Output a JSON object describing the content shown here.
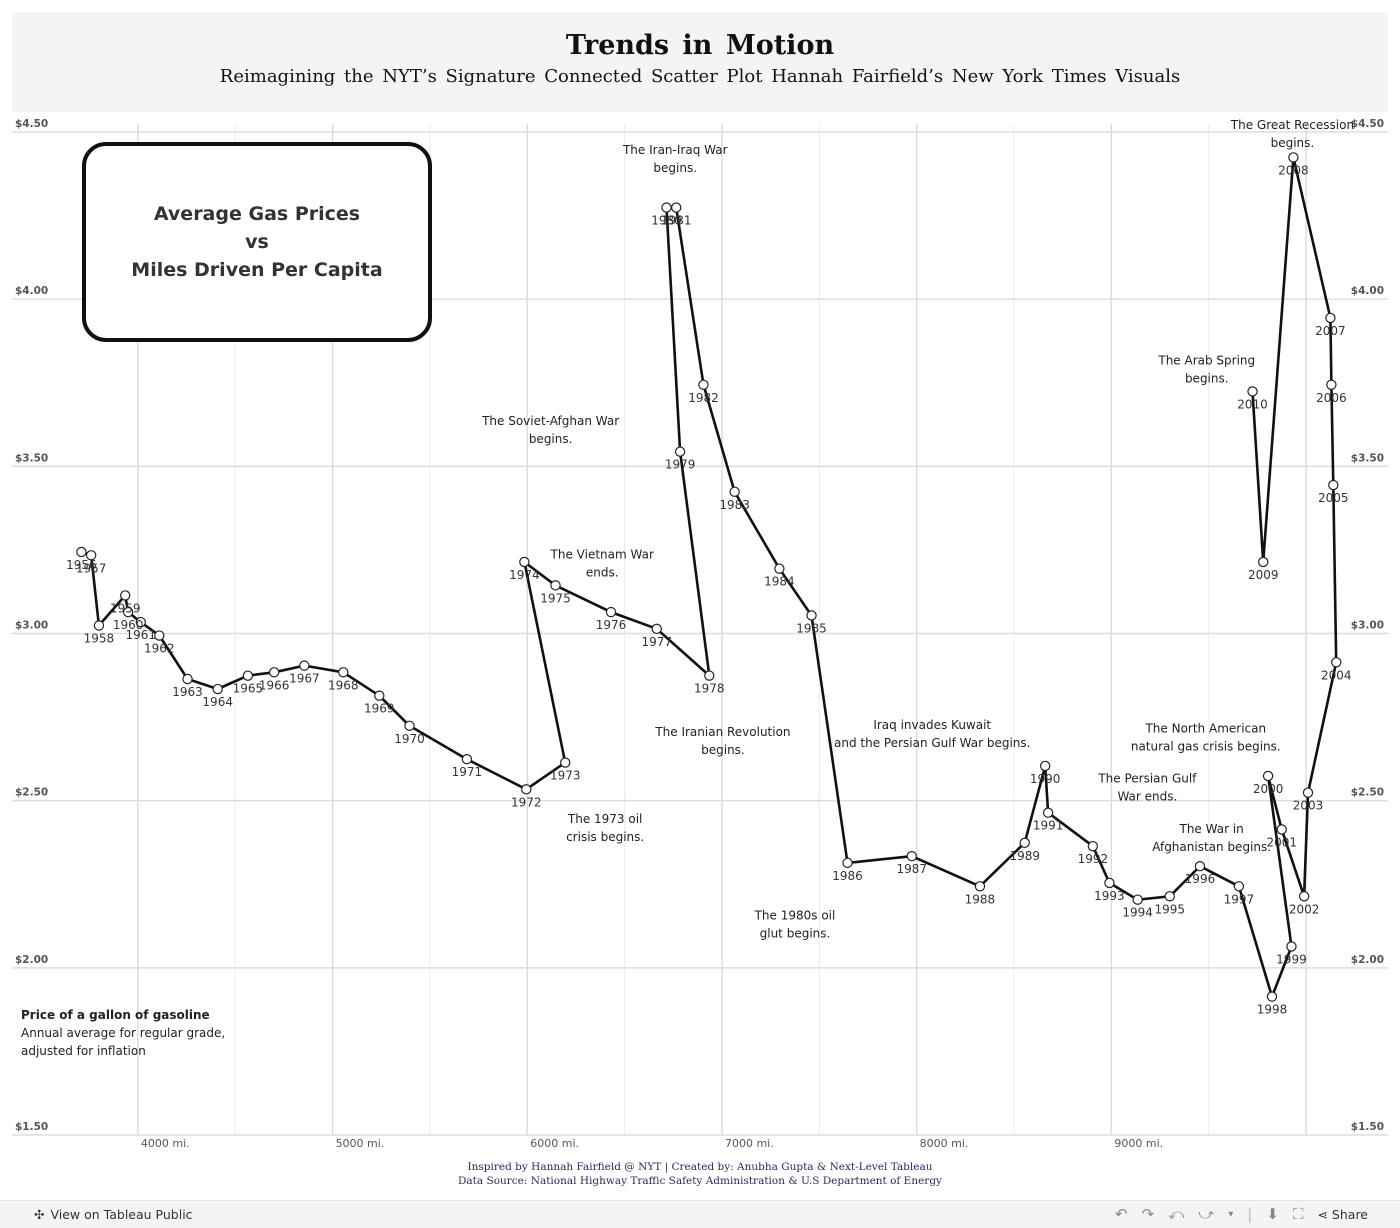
{
  "header": {
    "title": "Trends in Motion",
    "subtitle": "Reimagining the NYT’s Signature Connected Scatter Plot Hannah Fairfield’s New York Times Visuals"
  },
  "legend_box": {
    "line1": "Average Gas Prices",
    "line2": "vs",
    "line3": "Miles Driven Per Capita"
  },
  "note": {
    "title": "Price of  a gallon of gasoline",
    "line1": "Annual average for regular grade,",
    "line2": "adjusted for inflation"
  },
  "credits": {
    "line1": "Inspired by Hannah Fairfield @ NYT  |  Created by: Anubha Gupta & Next-Level Tableau",
    "line2": "Data Source: National Highway Traffic Safety Administration & U.S Department of Energy"
  },
  "footer": {
    "view_label": "View on Tableau Public",
    "share_label": "Share",
    "icons": [
      "undo-icon",
      "redo-icon",
      "revert-icon",
      "forward-icon",
      "download-icon",
      "fullscreen-icon",
      "share-icon"
    ]
  },
  "chart_data": {
    "type": "scatter",
    "connected": true,
    "xlim": [
      3600,
      10200
    ],
    "ylim": [
      1.5,
      4.5
    ],
    "x_ticks": [
      4000,
      5000,
      6000,
      7000,
      8000,
      9000
    ],
    "x_tick_labels": [
      "4000 mi.",
      "5000 mi.",
      "6000 mi.",
      "7000 mi.",
      "8000 mi.",
      "9000 mi."
    ],
    "y_ticks": [
      1.5,
      2.0,
      2.5,
      3.0,
      3.5,
      4.0,
      4.5
    ],
    "y_tick_labels": [
      "$1.50",
      "$2.00",
      "$2.50",
      "$3.00",
      "$3.50",
      "$4.00",
      "$4.50"
    ],
    "grid": true,
    "points": [
      {
        "year": "1956",
        "x": 3710,
        "y": 3.22
      },
      {
        "year": "1957",
        "x": 3760,
        "y": 3.21
      },
      {
        "year": "1958",
        "x": 3800,
        "y": 3.0
      },
      {
        "year": "1959",
        "x": 3935,
        "y": 3.09
      },
      {
        "year": "1960",
        "x": 3950,
        "y": 3.04
      },
      {
        "year": "1961",
        "x": 4015,
        "y": 3.01
      },
      {
        "year": "1962",
        "x": 4110,
        "y": 2.97
      },
      {
        "year": "1963",
        "x": 4255,
        "y": 2.84
      },
      {
        "year": "1964",
        "x": 4410,
        "y": 2.81
      },
      {
        "year": "1965",
        "x": 4565,
        "y": 2.85
      },
      {
        "year": "1966",
        "x": 4700,
        "y": 2.86
      },
      {
        "year": "1967",
        "x": 4855,
        "y": 2.88
      },
      {
        "year": "1968",
        "x": 5055,
        "y": 2.86
      },
      {
        "year": "1969",
        "x": 5240,
        "y": 2.79
      },
      {
        "year": "1970",
        "x": 5395,
        "y": 2.7
      },
      {
        "year": "1971",
        "x": 5690,
        "y": 2.6
      },
      {
        "year": "1972",
        "x": 5995,
        "y": 2.51
      },
      {
        "year": "1973",
        "x": 6195,
        "y": 2.59
      },
      {
        "year": "1974",
        "x": 5985,
        "y": 3.19
      },
      {
        "year": "1975",
        "x": 6145,
        "y": 3.12
      },
      {
        "year": "1976",
        "x": 6430,
        "y": 3.04
      },
      {
        "year": "1977",
        "x": 6665,
        "y": 2.99
      },
      {
        "year": "1978",
        "x": 6935,
        "y": 2.85
      },
      {
        "year": "1979",
        "x": 6785,
        "y": 3.52
      },
      {
        "year": "1980",
        "x": 6715,
        "y": 4.25
      },
      {
        "year": "1981",
        "x": 6765,
        "y": 4.25
      },
      {
        "year": "1982",
        "x": 6905,
        "y": 3.72
      },
      {
        "year": "1983",
        "x": 7065,
        "y": 3.4
      },
      {
        "year": "1984",
        "x": 7295,
        "y": 3.17
      },
      {
        "year": "1985",
        "x": 7460,
        "y": 3.03
      },
      {
        "year": "1986",
        "x": 7645,
        "y": 2.29
      },
      {
        "year": "1987",
        "x": 7975,
        "y": 2.31
      },
      {
        "year": "1988",
        "x": 8325,
        "y": 2.22
      },
      {
        "year": "1989",
        "x": 8555,
        "y": 2.35
      },
      {
        "year": "1990",
        "x": 8660,
        "y": 2.58
      },
      {
        "year": "1991",
        "x": 8675,
        "y": 2.44
      },
      {
        "year": "1992",
        "x": 8905,
        "y": 2.34
      },
      {
        "year": "1993",
        "x": 8990,
        "y": 2.23
      },
      {
        "year": "1994",
        "x": 9135,
        "y": 2.18
      },
      {
        "year": "1995",
        "x": 9300,
        "y": 2.19
      },
      {
        "year": "1996",
        "x": 9455,
        "y": 2.28
      },
      {
        "year": "1997",
        "x": 9655,
        "y": 2.22
      },
      {
        "year": "1998",
        "x": 9825,
        "y": 1.89
      },
      {
        "year": "1999",
        "x": 9925,
        "y": 2.04
      },
      {
        "year": "2000",
        "x": 9805,
        "y": 2.55
      },
      {
        "year": "2001",
        "x": 9875,
        "y": 2.39
      },
      {
        "year": "2002",
        "x": 9990,
        "y": 2.19
      },
      {
        "year": "2003",
        "x": 10010,
        "y": 2.5
      },
      {
        "year": "2004",
        "x": 10155,
        "y": 2.89
      },
      {
        "year": "2005",
        "x": 10140,
        "y": 3.42
      },
      {
        "year": "2006",
        "x": 10130,
        "y": 3.72
      },
      {
        "year": "2007",
        "x": 10125,
        "y": 3.92
      },
      {
        "year": "2008",
        "x": 9935,
        "y": 4.4
      },
      {
        "year": "2009",
        "x": 9780,
        "y": 3.19
      },
      {
        "year": "2010",
        "x": 9725,
        "y": 3.7
      }
    ],
    "annotations": [
      {
        "lines": [
          "The Great Recession",
          "begins."
        ],
        "x": 9930,
        "y": 4.485
      },
      {
        "lines": [
          "The Iran-Iraq War",
          "begins."
        ],
        "x": 6760,
        "y": 4.41
      },
      {
        "lines": [
          "The Arab Spring",
          "begins."
        ],
        "x": 9490,
        "y": 3.78
      },
      {
        "lines": [
          "The Soviet-Afghan War",
          "begins."
        ],
        "x": 6120,
        "y": 3.6
      },
      {
        "lines": [
          "The Vietnam War",
          "ends."
        ],
        "x": 6385,
        "y": 3.2
      },
      {
        "lines": [
          "The Iranian Revolution",
          "begins."
        ],
        "x": 7005,
        "y": 2.67
      },
      {
        "lines": [
          "Iraq invades Kuwait",
          "and the Persian Gulf War begins."
        ],
        "x": 8080,
        "y": 2.69
      },
      {
        "lines": [
          "The North American",
          "natural gas crisis begins."
        ],
        "x": 9485,
        "y": 2.68
      },
      {
        "lines": [
          "The Persian Gulf",
          "War ends."
        ],
        "x": 9185,
        "y": 2.53
      },
      {
        "lines": [
          "The 1973 oil",
          "crisis begins."
        ],
        "x": 6400,
        "y": 2.41
      },
      {
        "lines": [
          "The War in",
          "Afghanistan begins."
        ],
        "x": 9515,
        "y": 2.38
      },
      {
        "lines": [
          "The 1980s oil",
          "glut begins."
        ],
        "x": 7375,
        "y": 2.12
      }
    ]
  }
}
